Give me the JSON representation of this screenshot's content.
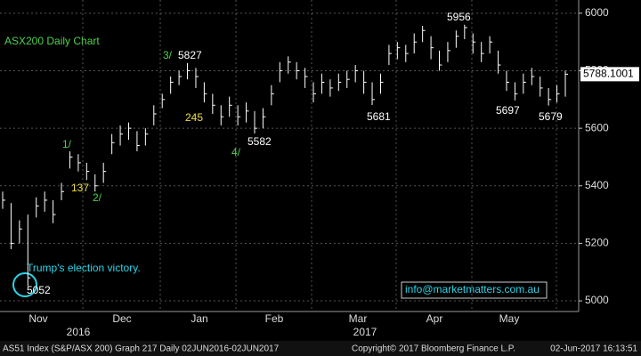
{
  "chart_data": {
    "type": "ohlc",
    "title": "ASX200 Daily Chart",
    "months": [
      "Nov",
      "Dec",
      "Jan",
      "Feb",
      "Mar",
      "Apr",
      "May"
    ],
    "years": [
      "2016",
      "2017"
    ],
    "close": [
      5350,
      5200,
      5250,
      5080,
      5330,
      5350,
      5300,
      5380,
      5500,
      5480,
      5450,
      5400,
      5450,
      5550,
      5580,
      5600,
      5540,
      5580,
      5650,
      5700,
      5760,
      5780,
      5800,
      5780,
      5720,
      5680,
      5640,
      5680,
      5640,
      5660,
      5600,
      5640,
      5720,
      5800,
      5830,
      5800,
      5780,
      5720,
      5760,
      5740,
      5760,
      5770,
      5800,
      5760,
      5700,
      5760,
      5860,
      5880,
      5860,
      5900,
      5940,
      5880,
      5820,
      5870,
      5920,
      5950,
      5900,
      5860,
      5900,
      5820,
      5760,
      5720,
      5760,
      5780,
      5740,
      5700,
      5720,
      5788
    ],
    "high": [
      5380,
      5340,
      5280,
      5300,
      5360,
      5380,
      5350,
      5410,
      5520,
      5510,
      5480,
      5440,
      5480,
      5580,
      5610,
      5620,
      5590,
      5600,
      5680,
      5720,
      5780,
      5800,
      5827,
      5810,
      5760,
      5720,
      5680,
      5710,
      5680,
      5690,
      5660,
      5670,
      5750,
      5830,
      5850,
      5830,
      5810,
      5760,
      5790,
      5770,
      5790,
      5800,
      5820,
      5800,
      5760,
      5790,
      5890,
      5900,
      5890,
      5930,
      5956,
      5920,
      5870,
      5900,
      5940,
      5960,
      5930,
      5900,
      5920,
      5870,
      5800,
      5760,
      5790,
      5810,
      5780,
      5740,
      5750,
      5800
    ],
    "low": [
      5320,
      5180,
      5200,
      5052,
      5290,
      5310,
      5270,
      5350,
      5460,
      5450,
      5420,
      5380,
      5410,
      5510,
      5540,
      5560,
      5520,
      5540,
      5610,
      5670,
      5720,
      5750,
      5770,
      5740,
      5690,
      5650,
      5610,
      5640,
      5610,
      5620,
      5582,
      5600,
      5680,
      5760,
      5790,
      5770,
      5740,
      5690,
      5720,
      5710,
      5730,
      5740,
      5760,
      5720,
      5681,
      5720,
      5820,
      5840,
      5830,
      5860,
      5900,
      5840,
      5800,
      5830,
      5880,
      5910,
      5860,
      5830,
      5860,
      5790,
      5730,
      5697,
      5720,
      5750,
      5710,
      5679,
      5690,
      5710
    ],
    "last_price": 5788.1001,
    "ylim": [
      4963,
      6046
    ],
    "yticks": [
      5000,
      5200,
      5400,
      5600,
      5800,
      6000
    ],
    "grid": true,
    "annotations": [
      "Trump's election victory.",
      "5052",
      "137",
      "1/",
      "2/",
      "3/",
      "5827",
      "245",
      "4/",
      "5582",
      "5681",
      "5956",
      "5697",
      "5679"
    ],
    "watermark": "info@marketmatters.com.au",
    "footer": [
      "AS51 Index (S&P/ASX 200) Graph 217  Daily 02JUN2016-02JUN2017",
      "Copyright© 2017 Bloomberg Finance L.P.",
      "02-Jun-2017 16:13:51"
    ]
  }
}
